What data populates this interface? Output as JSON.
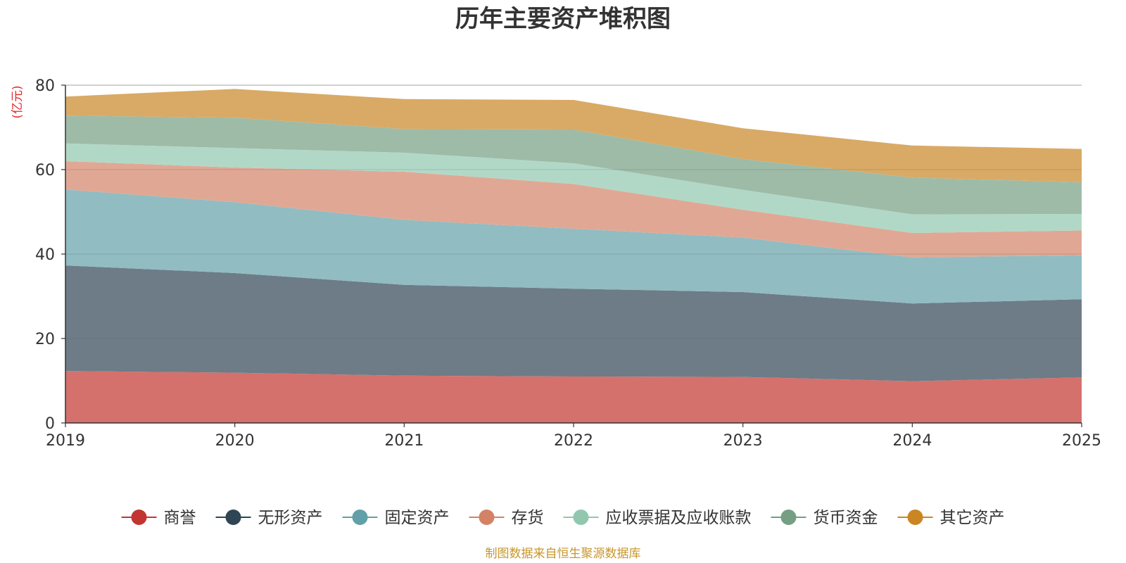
{
  "chart_data": {
    "type": "area",
    "stacked": true,
    "title": "历年主要资产堆积图",
    "ylabel": "(亿元)",
    "xlabel": "",
    "ylim": [
      0,
      80
    ],
    "yticks": [
      0,
      20,
      40,
      60,
      80
    ],
    "x": [
      "2019",
      "2020",
      "2021",
      "2022",
      "2023",
      "2024",
      "2025"
    ],
    "grid": true,
    "legend_position": "bottom",
    "series": [
      {
        "name": "商誉",
        "color": "#c23531",
        "fill": "#d4716c",
        "values": [
          12.3,
          11.9,
          11.2,
          11.0,
          10.9,
          9.9,
          10.8
        ]
      },
      {
        "name": "无形资产",
        "color": "#2f4554",
        "fill": "#6d7c87",
        "values": [
          25.0,
          23.6,
          21.5,
          20.8,
          20.1,
          18.4,
          18.5
        ]
      },
      {
        "name": "固定资产",
        "color": "#61a0a8",
        "fill": "#91bcc2",
        "values": [
          18.0,
          16.8,
          15.4,
          14.2,
          12.9,
          10.9,
          10.4
        ]
      },
      {
        "name": "存货",
        "color": "#d48265",
        "fill": "#e0a894",
        "values": [
          6.7,
          8.2,
          11.4,
          10.6,
          6.6,
          5.8,
          5.9
        ]
      },
      {
        "name": "应收票据及应收账款",
        "color": "#91c7ae",
        "fill": "#b1d8c7",
        "values": [
          4.2,
          4.6,
          4.5,
          4.9,
          4.7,
          4.4,
          3.9
        ]
      },
      {
        "name": "货币资金",
        "color": "#749f83",
        "fill": "#9ebba8",
        "values": [
          6.6,
          7.2,
          5.6,
          8.0,
          7.3,
          8.7,
          7.5
        ]
      },
      {
        "name": "其它资产",
        "color": "#ca8622",
        "fill": "#d9aa65",
        "values": [
          4.5,
          6.8,
          7.1,
          7.0,
          7.3,
          7.6,
          7.9
        ]
      }
    ],
    "source": "制图数据来自恒生聚源数据库"
  }
}
